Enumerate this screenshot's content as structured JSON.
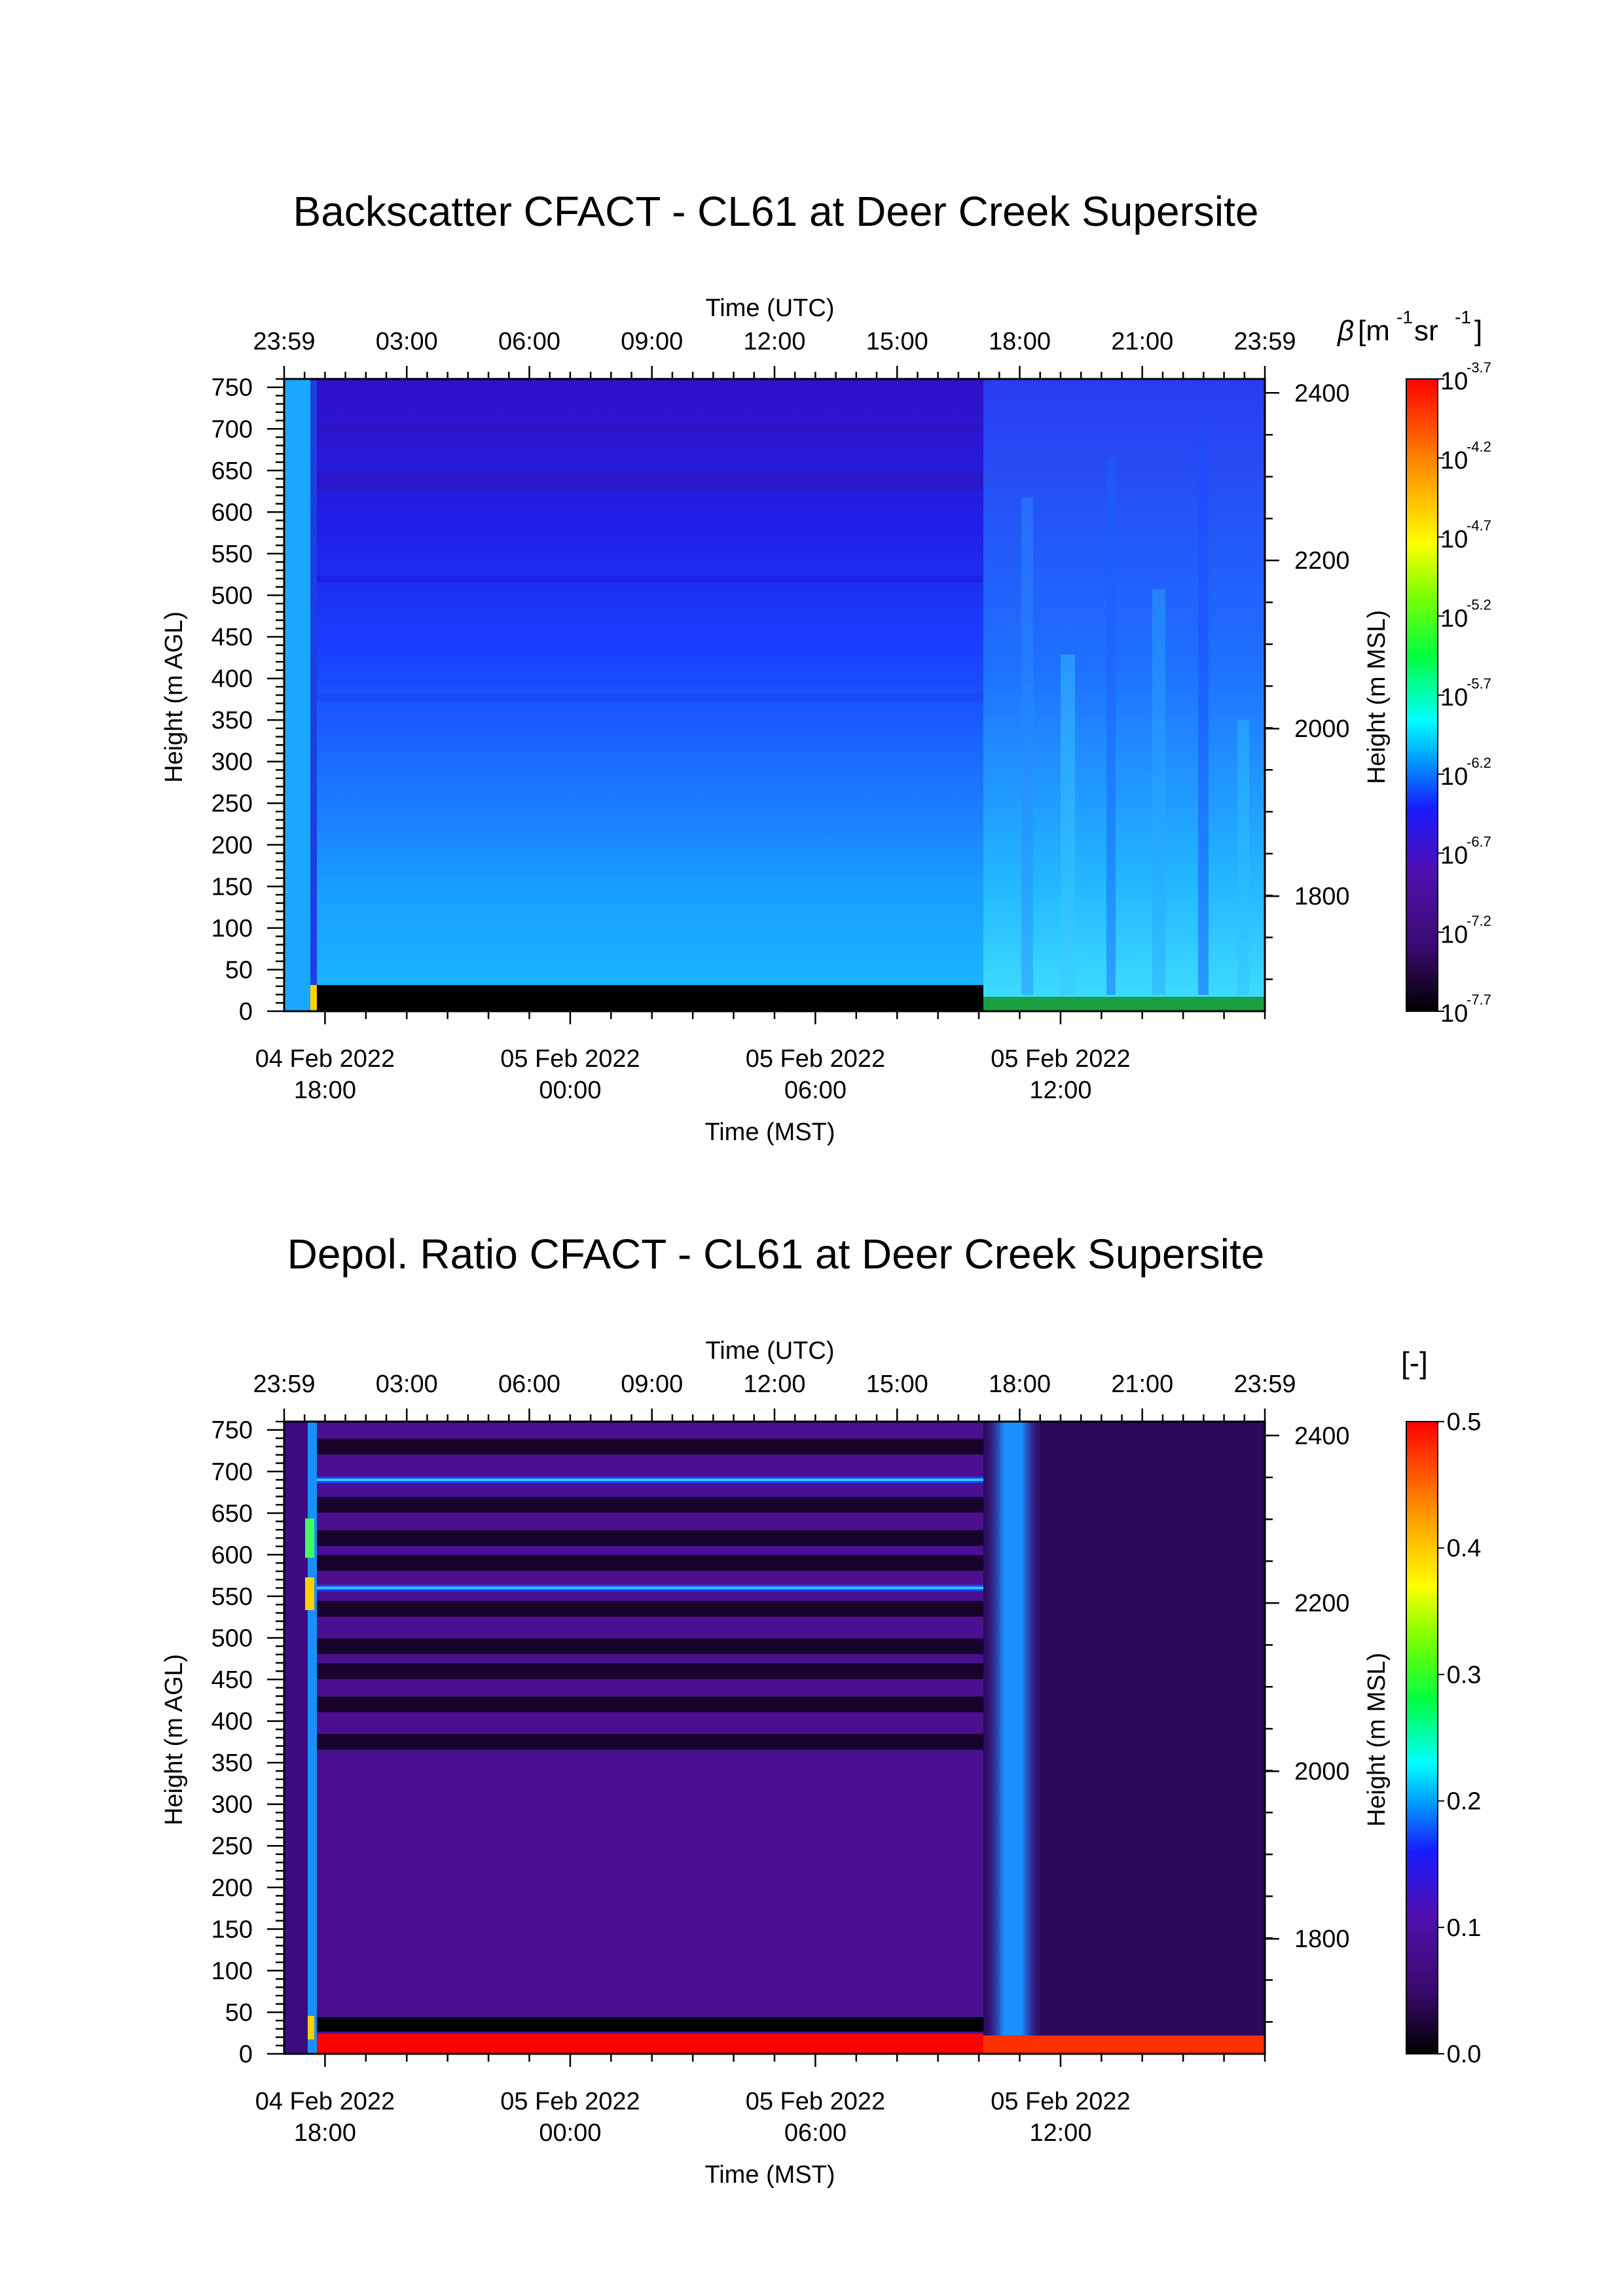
{
  "chart_data": [
    {
      "type": "heatmap",
      "title": "Backscatter CFACT - CL61 at Deer Creek Supersite",
      "top_axis": {
        "label": "Time (UTC)",
        "ticks": [
          "23:59",
          "03:00",
          "06:00",
          "09:00",
          "12:00",
          "15:00",
          "18:00",
          "21:00",
          "23:59"
        ]
      },
      "bottom_axis": {
        "label": "Time (MST)",
        "ticks": [
          {
            "date": "04 Feb 2022",
            "time": "18:00"
          },
          {
            "date": "05 Feb 2022",
            "time": "00:00"
          },
          {
            "date": "05 Feb 2022",
            "time": "06:00"
          },
          {
            "date": "05 Feb 2022",
            "time": "12:00"
          }
        ]
      },
      "left_axis": {
        "label": "Height (m AGL)",
        "range": [
          0,
          760
        ],
        "ticks": [
          0,
          50,
          100,
          150,
          200,
          250,
          300,
          350,
          400,
          450,
          500,
          550,
          600,
          650,
          700,
          750
        ]
      },
      "right_axis": {
        "label": "Height (m MSL)",
        "ticks": [
          1800,
          2000,
          2200,
          2400
        ]
      },
      "colorbar": {
        "label_symbol": "β",
        "label_unit": "[m",
        "label_exp1": "-1",
        "label_unit2": " sr",
        "label_exp2": "-1",
        "label_close": "]",
        "scale": "log",
        "range_exp": [
          -7.7,
          -3.7
        ],
        "tick_base": "10",
        "tick_exponents": [
          "-3.7",
          "-4.2",
          "-4.7",
          "-5.2",
          "-5.7",
          "-6.2",
          "-6.7",
          "-7.2",
          "-7.7"
        ]
      },
      "colormap": [
        "#000000",
        "#3a0a6e",
        "#5010b0",
        "#1a1aff",
        "#00a0ff",
        "#00ffff",
        "#00ff40",
        "#80ff00",
        "#ffff00",
        "#ff9000",
        "#ff0000"
      ],
      "segments": {
        "early_column_color": "#1aa8ff",
        "main_period_upper_color": "#2222f0",
        "main_period_lower_color": "#19a3ff",
        "near_surface_color": "#000000",
        "afternoon_color": "#1f7dff"
      }
    },
    {
      "type": "heatmap",
      "title": "Depol. Ratio CFACT - CL61 at Deer Creek Supersite",
      "top_axis": {
        "label": "Time (UTC)",
        "ticks": [
          "23:59",
          "03:00",
          "06:00",
          "09:00",
          "12:00",
          "15:00",
          "18:00",
          "21:00",
          "23:59"
        ]
      },
      "bottom_axis": {
        "label": "Time (MST)",
        "ticks": [
          {
            "date": "04 Feb 2022",
            "time": "18:00"
          },
          {
            "date": "05 Feb 2022",
            "time": "00:00"
          },
          {
            "date": "05 Feb 2022",
            "time": "06:00"
          },
          {
            "date": "05 Feb 2022",
            "time": "12:00"
          }
        ]
      },
      "left_axis": {
        "label": "Height (m AGL)",
        "range": [
          0,
          760
        ],
        "ticks": [
          0,
          50,
          100,
          150,
          200,
          250,
          300,
          350,
          400,
          450,
          500,
          550,
          600,
          650,
          700,
          750
        ]
      },
      "right_axis": {
        "label": "Height (m MSL)",
        "ticks": [
          1800,
          2000,
          2200,
          2400
        ]
      },
      "colorbar": {
        "label": "[-]",
        "scale": "linear",
        "range": [
          0.0,
          0.5
        ],
        "tick_labels": [
          "0.5",
          "0.4",
          "0.3",
          "0.2",
          "0.1",
          "0.0"
        ]
      },
      "colormap": [
        "#000000",
        "#3a0a6e",
        "#5010b0",
        "#1a1aff",
        "#00a0ff",
        "#00ffff",
        "#00ff40",
        "#80ff00",
        "#ffff00",
        "#ff9000",
        "#ff0000"
      ],
      "segments": {
        "background_color": "#4a1090",
        "blue_layer_heights": [
          690,
          560
        ],
        "dark_layer_heights": [
          730,
          660,
          620,
          590,
          535,
          490,
          460,
          420,
          375,
          15
        ],
        "surface_color": "#ff0000",
        "afternoon_plume_color": "#1a90ff"
      }
    }
  ]
}
